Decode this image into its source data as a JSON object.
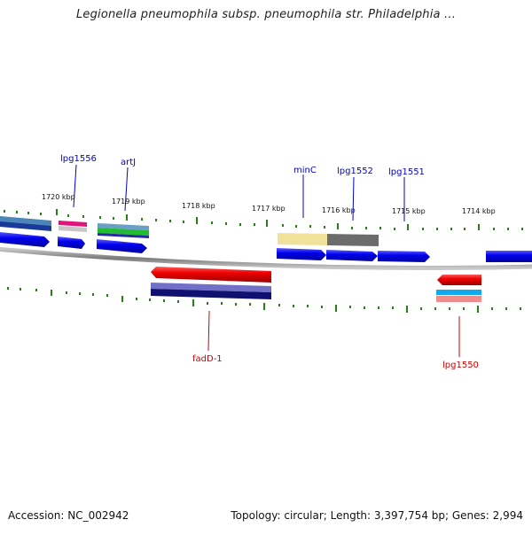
{
  "title": "Legionella pneumophila subsp. pneumophila str. Philadelphia ...",
  "accession": "Accession: NC_002942",
  "topology": "Topology: circular; Length: 3,397,754 bp; Genes: 2,994",
  "scale_labels": [
    "1720 kbp",
    "1719 kbp",
    "1718 kbp",
    "1717 kbp",
    "1716 kbp",
    "1715 kbp",
    "1714 kbp"
  ],
  "genes_top": [
    "lpg1556",
    "artJ",
    "minC",
    "lpg1552",
    "lpg1551"
  ],
  "genes_bottom": [
    "fadD-1",
    "lpg1550"
  ],
  "colors": {
    "forward_gene": "#0000ee",
    "reverse_gene": "#ee0000",
    "top_label": "#0000cc",
    "bottom_label": "#cc0000",
    "tick": "#2a7d1a",
    "backbone": "#8a8a8a"
  }
}
